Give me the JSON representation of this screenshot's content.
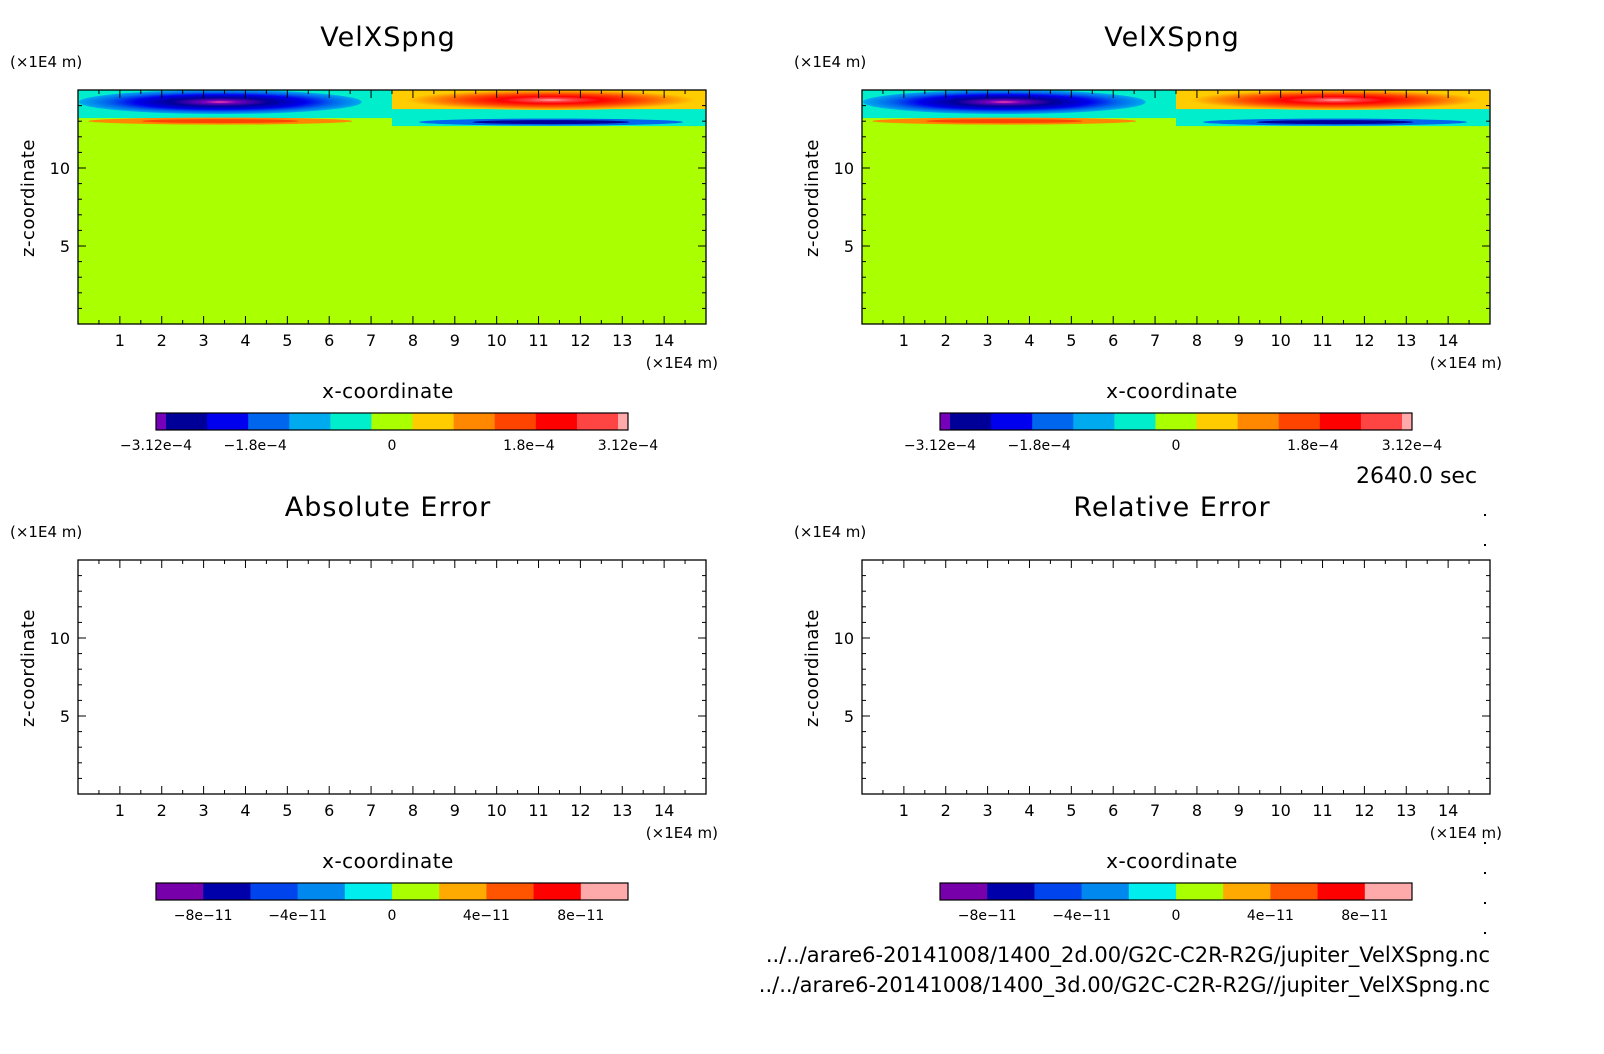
{
  "colors": {
    "background": "#ffffff",
    "field_zero": "#aaff00",
    "velocity_scale": [
      "#7700bb",
      "#000099",
      "#0000ee",
      "#0066ee",
      "#00aaee",
      "#00eecc",
      "#aaff00",
      "#ffcc00",
      "#ff8800",
      "#ff4400",
      "#ff0000",
      "#ff4444",
      "#ffaaaa"
    ],
    "error_scale": [
      "#7700aa",
      "#0000aa",
      "#0044ee",
      "#0088ee",
      "#00eeee",
      "#aaff00",
      "#ffaa00",
      "#ff5500",
      "#ff0000",
      "#ffaaaa"
    ]
  },
  "time_label": "2640.0 sec",
  "file_paths": [
    "../../arare6-20141008/1400_2d.00/G2C-C2R-R2G/jupiter_VelXSpng.nc",
    "../../arare6-20141008/1400_3d.00/G2C-C2R-R2G//jupiter_VelXSpng.nc"
  ],
  "chart_data": [
    {
      "type": "heatmap",
      "title": "VelXSpng",
      "xlabel": "x-coordinate",
      "ylabel": "z-coordinate",
      "x_unit": "(×1E4 m)",
      "y_unit": "(×1E4 m)",
      "xlim": [
        0,
        15
      ],
      "ylim": [
        0,
        15
      ],
      "x_ticks": [
        "1",
        "2",
        "3",
        "4",
        "5",
        "6",
        "7",
        "8",
        "9",
        "10",
        "11",
        "12",
        "13",
        "14"
      ],
      "y_ticks": [
        "5",
        "10"
      ],
      "colorbar_labels": [
        "-3.12e-4",
        "-1.8e-4",
        "0",
        "1.8e-4",
        "3.12e-4"
      ],
      "field": "negative lobe near top over x≈0–7.5, positive lobe near top over x≈7.5–15, rest ≈ 0"
    },
    {
      "type": "heatmap",
      "title": "VelXSpng",
      "xlabel": "x-coordinate",
      "ylabel": "z-coordinate",
      "x_unit": "(×1E4 m)",
      "y_unit": "(×1E4 m)",
      "xlim": [
        0,
        15
      ],
      "ylim": [
        0,
        15
      ],
      "x_ticks": [
        "1",
        "2",
        "3",
        "4",
        "5",
        "6",
        "7",
        "8",
        "9",
        "10",
        "11",
        "12",
        "13",
        "14"
      ],
      "y_ticks": [
        "5",
        "10"
      ],
      "colorbar_labels": [
        "-3.12e-4",
        "-1.8e-4",
        "0",
        "1.8e-4",
        "3.12e-4"
      ],
      "field": "negative lobe near top over x≈0–7.5, positive lobe near top over x≈7.5–15, rest ≈ 0"
    },
    {
      "type": "heatmap",
      "title": "Absolute Error",
      "xlabel": "x-coordinate",
      "ylabel": "z-coordinate",
      "x_unit": "(×1E4 m)",
      "y_unit": "(×1E4 m)",
      "xlim": [
        0,
        15
      ],
      "ylim": [
        0,
        15
      ],
      "x_ticks": [
        "1",
        "2",
        "3",
        "4",
        "5",
        "6",
        "7",
        "8",
        "9",
        "10",
        "11",
        "12",
        "13",
        "14"
      ],
      "y_ticks": [
        "5",
        "10"
      ],
      "colorbar_labels": [
        "-8e-11",
        "-4e-11",
        "0",
        "4e-11",
        "8e-11"
      ],
      "field": "empty"
    },
    {
      "type": "heatmap",
      "title": "Relative Error",
      "xlabel": "x-coordinate",
      "ylabel": "z-coordinate",
      "x_unit": "(×1E4 m)",
      "y_unit": "(×1E4 m)",
      "xlim": [
        0,
        15
      ],
      "ylim": [
        0,
        15
      ],
      "x_ticks": [
        "1",
        "2",
        "3",
        "4",
        "5",
        "6",
        "7",
        "8",
        "9",
        "10",
        "11",
        "12",
        "13",
        "14"
      ],
      "y_ticks": [
        "5",
        "10"
      ],
      "colorbar_labels": [
        "-8e-11",
        "-4e-11",
        "0",
        "4e-11",
        "8e-11"
      ],
      "field": "empty"
    }
  ]
}
